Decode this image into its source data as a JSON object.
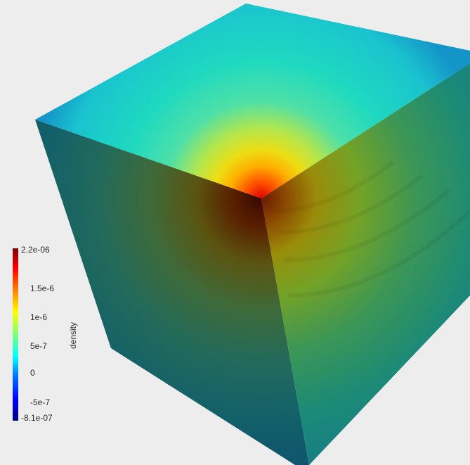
{
  "scene": {
    "object": "cube",
    "background_color": "#ededed",
    "field": "density",
    "colormap": "jet"
  },
  "color_legend": {
    "title": "density",
    "range": [
      -8.1e-07,
      2.2e-06
    ],
    "labels": [
      "2.2e-06",
      "1.5e-6",
      "1e-6",
      "5e-7",
      "0",
      "-5e-7",
      "-8.1e-07"
    ],
    "values": [
      2.2e-06,
      1.5e-06,
      1e-06,
      5e-07,
      0,
      -5e-07,
      -8.1e-07
    ],
    "colors": [
      "#00007f",
      "#0000ff",
      "#007fff",
      "#00ffff",
      "#7fff7f",
      "#ffff00",
      "#ff7f00",
      "#ff0000",
      "#7f0000"
    ]
  }
}
